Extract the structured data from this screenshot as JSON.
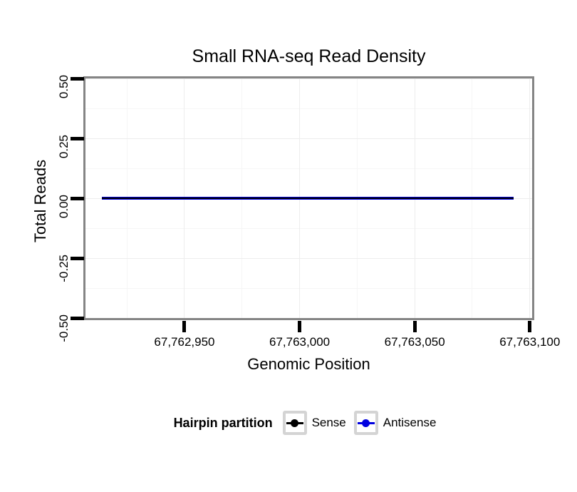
{
  "chart_data": {
    "type": "line",
    "title": "Small RNA-seq Read Density",
    "xlabel": "Genomic Position",
    "ylabel": "Total Reads",
    "x_axis": {
      "range": [
        67762907,
        67763101
      ],
      "ticks": [
        {
          "value": 67762950,
          "label": "67,762,950"
        },
        {
          "value": 67763000,
          "label": "67,763,000"
        },
        {
          "value": 67763050,
          "label": "67,763,050"
        },
        {
          "value": 67763100,
          "label": "67,763,100"
        }
      ],
      "minor_ticks": [
        67762925,
        67762975,
        67763025,
        67763075
      ]
    },
    "y_axis": {
      "range": [
        -0.5,
        0.5
      ],
      "ticks": [
        {
          "value": 0.5,
          "label": "0.50"
        },
        {
          "value": 0.25,
          "label": "0.25"
        },
        {
          "value": 0.0,
          "label": "0.00"
        },
        {
          "value": -0.25,
          "label": "-0.25"
        },
        {
          "value": -0.5,
          "label": "-0.50"
        }
      ],
      "minor_ticks": [
        0.375,
        0.125,
        -0.125,
        -0.375
      ]
    },
    "series": [
      {
        "name": "Sense",
        "color": "#000000",
        "x": [
          67762914,
          67763093
        ],
        "y": [
          0,
          0
        ]
      },
      {
        "name": "Antisense",
        "color": "#0000e0",
        "x": [
          67762914,
          67763093
        ],
        "y": [
          0,
          0
        ]
      }
    ],
    "grid": {
      "on": true,
      "major_color": "#ededed",
      "minor_color": "#f6f6f6"
    },
    "colors": {
      "panel_border": "#858585",
      "axis_tick": "#000000",
      "legend_key_border": "#d4d4d4",
      "background": "#ffffff"
    },
    "legend": {
      "title": "Hairpin partition",
      "position": "bottom",
      "entries": [
        {
          "label": "Sense",
          "color": "#000000"
        },
        {
          "label": "Antisense",
          "color": "#0000e0"
        }
      ]
    }
  }
}
